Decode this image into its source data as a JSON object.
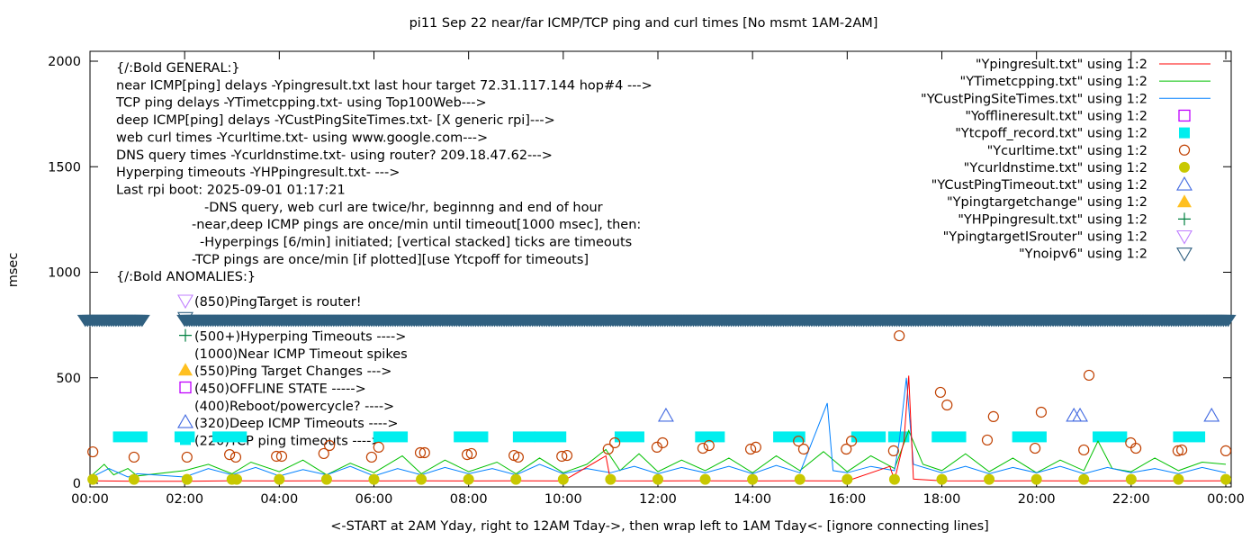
{
  "chart_data": {
    "type": "line",
    "title": "pi11 Sep 22  near/far ICMP/TCP ping and curl times [No msmt 1AM-2AM]",
    "xlabel": "<-START at 2AM Yday, right to 12AM Tday->, then wrap left to 1AM Tday<- [ignore connecting lines]",
    "ylabel": "msec",
    "xlim": [
      0,
      24.1
    ],
    "ylim": [
      -17,
      2047
    ],
    "xticks": [
      "00:00",
      "02:00",
      "04:00",
      "06:00",
      "08:00",
      "10:00",
      "12:00",
      "14:00",
      "16:00",
      "18:00",
      "20:00",
      "22:00",
      "00:00"
    ],
    "yticks": [
      0,
      500,
      1000,
      1500,
      2000
    ],
    "grid": false,
    "legend_position": "top-right",
    "notes": [
      "{/:Bold GENERAL:}",
      "near ICMP[ping] delays -Ypingresult.txt last hour target 72.31.117.144 hop#4 --->",
      "TCP ping delays -YTimetcpping.txt- using Top100Web--->",
      "deep ICMP[ping] delays -YCustPingSiteTimes.txt- [X generic rpi]--->",
      "web curl times -Ycurltime.txt- using www.google.com--->",
      "DNS query times -Ycurldnstime.txt- using router? 209.18.47.62--->",
      "Hyperping timeouts -YHPpingresult.txt- --->",
      "Last rpi boot: 2025-09-01 01:17:21",
      "-DNS query, web curl are twice/hr, beginnng and end of hour",
      "-near,deep ICMP pings are once/min until timeout[1000 msec], then:",
      "-Hyperpings [6/min] initiated; [vertical stacked] ticks are timeouts",
      "-TCP pings are once/min [if plotted][use Ytcpoff for timeouts]",
      "{/:Bold ANOMALIES:}"
    ],
    "anomalies": [
      {
        "text": "(850)PingTarget is router!",
        "marker": "ypingtargetisrouter"
      },
      {
        "text": "",
        "marker": "ynoipv6"
      },
      {
        "text": "(500+)Hyperping Timeouts ---->",
        "marker": "yhppingresult"
      },
      {
        "text": "(1000)Near ICMP Timeout spikes",
        "marker": ""
      },
      {
        "text": "(550)Ping Target Changes --->",
        "marker": "ypingtargetchange"
      },
      {
        "text": "(450)OFFLINE STATE ----->",
        "marker": "yofflineresult"
      },
      {
        "text": "(400)Reboot/powercycle? ---->",
        "marker": ""
      },
      {
        "text": "(320)Deep ICMP Timeouts ---->",
        "marker": "ycustpingtimeout"
      },
      {
        "text": "(220)TCP ping timeouts ---->",
        "marker": "ytcpoff"
      }
    ],
    "legend": [
      {
        "key": "ypingresult",
        "label": "\"Ypingresult.txt\" using 1:2",
        "style": "line",
        "color": "#ff0000"
      },
      {
        "key": "ytimetcpping",
        "label": "\"YTimetcpping.txt\" using 1:2",
        "style": "line",
        "color": "#00c000"
      },
      {
        "key": "ycustpingsitetimes",
        "label": "\"YCustPingSiteTimes.txt\" using 1:2",
        "style": "line",
        "color": "#0080ff"
      },
      {
        "key": "yofflineresult",
        "label": "\"Yofflineresult.txt\" using 1:2",
        "style": "open-square",
        "color": "#c000ff"
      },
      {
        "key": "ytcpoff",
        "label": "\"Ytcpoff_record.txt\" using 1:2",
        "style": "filled-square",
        "color": "#00eeee"
      },
      {
        "key": "ycurltime",
        "label": "\"Ycurltime.txt\" using 1:2",
        "style": "open-circle",
        "color": "#c04000"
      },
      {
        "key": "ycurldnstime",
        "label": "\"Ycurldnstime.txt\" using 1:2",
        "style": "filled-circle",
        "color": "#c8c800"
      },
      {
        "key": "ycustpingtimeout",
        "label": "\"YCustPingTimeout.txt\" using 1:2",
        "style": "open-triangle-up",
        "color": "#4169e1"
      },
      {
        "key": "ypingtargetchange",
        "label": "\"Ypingtargetchange\" using 1:2",
        "style": "filled-triangle-up",
        "color": "#ffc020"
      },
      {
        "key": "yhppingresult",
        "label": "\"YHPpingresult.txt\" using 1:2",
        "style": "plus",
        "color": "#008040"
      },
      {
        "key": "ypingtargetisrouter",
        "label": "\"YpingtargetISrouter\" using 1:2",
        "style": "open-triangle-down",
        "color": "#c080ff"
      },
      {
        "key": "ynoipv6",
        "label": "\"Ynoipv6\" using 1:2",
        "style": "open-triangle-down",
        "color": "#306080"
      }
    ],
    "series": {
      "ypingresult": [
        [
          0,
          12
        ],
        [
          1,
          10
        ],
        [
          2,
          10
        ],
        [
          3,
          12
        ],
        [
          4,
          11
        ],
        [
          5,
          12
        ],
        [
          6,
          11
        ],
        [
          7,
          12
        ],
        [
          8,
          11
        ],
        [
          9,
          12
        ],
        [
          10,
          11
        ],
        [
          10.9,
          130
        ],
        [
          11,
          12
        ],
        [
          12,
          11
        ],
        [
          13,
          12
        ],
        [
          14,
          11
        ],
        [
          15,
          12
        ],
        [
          16,
          11
        ],
        [
          16.9,
          80
        ],
        [
          17,
          15
        ],
        [
          17.2,
          200
        ],
        [
          17.3,
          510
        ],
        [
          17.4,
          20
        ],
        [
          18,
          12
        ],
        [
          19,
          11
        ],
        [
          20,
          12
        ],
        [
          21,
          11
        ],
        [
          22,
          12
        ],
        [
          23,
          11
        ],
        [
          24,
          12
        ]
      ],
      "ytimetcpping": [
        [
          0,
          30
        ],
        [
          0.3,
          90
        ],
        [
          0.5,
          40
        ],
        [
          0.8,
          70
        ],
        [
          1,
          35
        ],
        [
          2,
          60
        ],
        [
          2.5,
          90
        ],
        [
          3,
          45
        ],
        [
          3.4,
          100
        ],
        [
          4,
          55
        ],
        [
          4.5,
          110
        ],
        [
          5,
          40
        ],
        [
          5.5,
          95
        ],
        [
          6,
          50
        ],
        [
          6.6,
          130
        ],
        [
          7,
          45
        ],
        [
          7.5,
          110
        ],
        [
          8,
          55
        ],
        [
          8.6,
          100
        ],
        [
          9,
          45
        ],
        [
          9.5,
          120
        ],
        [
          10,
          50
        ],
        [
          10.5,
          90
        ],
        [
          10.9,
          160
        ],
        [
          11.2,
          60
        ],
        [
          11.6,
          140
        ],
        [
          12,
          55
        ],
        [
          12.5,
          110
        ],
        [
          13,
          60
        ],
        [
          13.5,
          120
        ],
        [
          14,
          50
        ],
        [
          14.5,
          130
        ],
        [
          15,
          60
        ],
        [
          15.5,
          150
        ],
        [
          16,
          55
        ],
        [
          16.5,
          130
        ],
        [
          17,
          70
        ],
        [
          17.3,
          250
        ],
        [
          17.6,
          90
        ],
        [
          18,
          60
        ],
        [
          18.5,
          140
        ],
        [
          19,
          55
        ],
        [
          19.5,
          120
        ],
        [
          20,
          50
        ],
        [
          20.5,
          110
        ],
        [
          21,
          60
        ],
        [
          21.3,
          200
        ],
        [
          21.6,
          70
        ],
        [
          22,
          55
        ],
        [
          22.5,
          120
        ],
        [
          23,
          60
        ],
        [
          23.5,
          100
        ],
        [
          24,
          90
        ]
      ],
      "ycustpingsitetimes": [
        [
          0,
          25
        ],
        [
          0.4,
          70
        ],
        [
          0.8,
          30
        ],
        [
          1,
          45
        ],
        [
          2,
          30
        ],
        [
          2.5,
          70
        ],
        [
          3,
          40
        ],
        [
          3.5,
          75
        ],
        [
          4,
          35
        ],
        [
          4.5,
          65
        ],
        [
          5,
          40
        ],
        [
          5.5,
          80
        ],
        [
          6,
          35
        ],
        [
          6.5,
          70
        ],
        [
          7,
          40
        ],
        [
          7.5,
          75
        ],
        [
          8,
          45
        ],
        [
          8.5,
          70
        ],
        [
          9,
          40
        ],
        [
          9.5,
          90
        ],
        [
          10,
          45
        ],
        [
          10.5,
          70
        ],
        [
          11,
          50
        ],
        [
          11.5,
          80
        ],
        [
          12,
          45
        ],
        [
          12.5,
          75
        ],
        [
          13,
          50
        ],
        [
          13.5,
          80
        ],
        [
          14,
          45
        ],
        [
          14.5,
          85
        ],
        [
          15,
          50
        ],
        [
          15.58,
          380
        ],
        [
          15.7,
          60
        ],
        [
          16,
          50
        ],
        [
          16.5,
          80
        ],
        [
          17,
          60
        ],
        [
          17.1,
          200
        ],
        [
          17.25,
          500
        ],
        [
          17.4,
          90
        ],
        [
          18,
          50
        ],
        [
          18.5,
          80
        ],
        [
          19,
          45
        ],
        [
          19.5,
          75
        ],
        [
          20,
          50
        ],
        [
          20.5,
          80
        ],
        [
          21,
          45
        ],
        [
          21.5,
          75
        ],
        [
          22,
          50
        ],
        [
          22.5,
          70
        ],
        [
          23,
          45
        ],
        [
          23.5,
          75
        ],
        [
          24,
          50
        ]
      ],
      "ycurltime": [
        [
          0.06,
          149
        ],
        [
          0.93,
          124
        ],
        [
          2.05,
          124
        ],
        [
          2.95,
          136
        ],
        [
          3.08,
          124
        ],
        [
          3.94,
          128
        ],
        [
          4.05,
          128
        ],
        [
          4.94,
          141
        ],
        [
          5.06,
          179
        ],
        [
          5.95,
          124
        ],
        [
          6.1,
          171
        ],
        [
          6.98,
          145
        ],
        [
          7.07,
          145
        ],
        [
          7.97,
          136
        ],
        [
          8.06,
          141
        ],
        [
          8.96,
          132
        ],
        [
          9.05,
          124
        ],
        [
          9.97,
          128
        ],
        [
          10.08,
          132
        ],
        [
          10.95,
          162
        ],
        [
          11.09,
          192
        ],
        [
          11.98,
          171
        ],
        [
          12.1,
          192
        ],
        [
          12.95,
          166
        ],
        [
          13.08,
          179
        ],
        [
          13.96,
          162
        ],
        [
          14.07,
          171
        ],
        [
          14.97,
          200
        ],
        [
          15.08,
          162
        ],
        [
          15.98,
          162
        ],
        [
          16.09,
          200
        ],
        [
          16.98,
          154
        ],
        [
          17.1,
          699
        ],
        [
          17.97,
          431
        ],
        [
          18.11,
          371
        ],
        [
          18.96,
          205
        ],
        [
          19.09,
          316
        ],
        [
          19.97,
          166
        ],
        [
          20.1,
          337
        ],
        [
          21.0,
          158
        ],
        [
          21.11,
          512
        ],
        [
          21.99,
          192
        ],
        [
          22.1,
          166
        ],
        [
          22.99,
          154
        ],
        [
          23.07,
          158
        ],
        [
          24.0,
          154
        ]
      ],
      "ycurldnstime": [
        [
          0.06,
          10
        ],
        [
          0.93,
          10
        ],
        [
          2.05,
          10
        ],
        [
          3.0,
          10
        ],
        [
          3.1,
          10
        ],
        [
          4.0,
          10
        ],
        [
          5.0,
          10
        ],
        [
          6.0,
          10
        ],
        [
          7.0,
          10
        ],
        [
          8.0,
          10
        ],
        [
          9.0,
          10
        ],
        [
          10.0,
          10
        ],
        [
          11.0,
          10
        ],
        [
          12.0,
          10
        ],
        [
          13.0,
          10
        ],
        [
          14.0,
          10
        ],
        [
          15.0,
          10
        ],
        [
          16.0,
          10
        ],
        [
          17.0,
          10
        ],
        [
          18.0,
          10
        ],
        [
          19.0,
          10
        ],
        [
          20.0,
          10
        ],
        [
          21.0,
          10
        ],
        [
          22.0,
          10
        ],
        [
          23.0,
          10
        ],
        [
          24.0,
          10
        ]
      ],
      "ycustpingtimeout": [
        [
          12.17,
          320
        ],
        [
          20.79,
          320
        ],
        [
          20.92,
          320
        ],
        [
          23.7,
          320
        ]
      ],
      "ytcpoff_ranges": {
        "value": 220,
        "ranges": [
          [
            0.6,
            1.1
          ],
          [
            1.9,
            2.1
          ],
          [
            2.7,
            3.2
          ],
          [
            6.1,
            6.6
          ],
          [
            7.8,
            8.3
          ],
          [
            9.05,
            9.3
          ],
          [
            9.5,
            9.95
          ],
          [
            11.2,
            11.6
          ],
          [
            12.9,
            13.3
          ],
          [
            14.55,
            15.0
          ],
          [
            16.2,
            16.7
          ],
          [
            16.98,
            17.2
          ],
          [
            17.9,
            18.4
          ],
          [
            19.6,
            20.1
          ],
          [
            21.3,
            21.8
          ],
          [
            23.0,
            23.45
          ]
        ]
      },
      "ynoipv6_ranges": {
        "value": 770,
        "ranges": [
          [
            -0.1,
            1.15
          ],
          [
            2.0,
            24.1
          ]
        ]
      }
    }
  }
}
